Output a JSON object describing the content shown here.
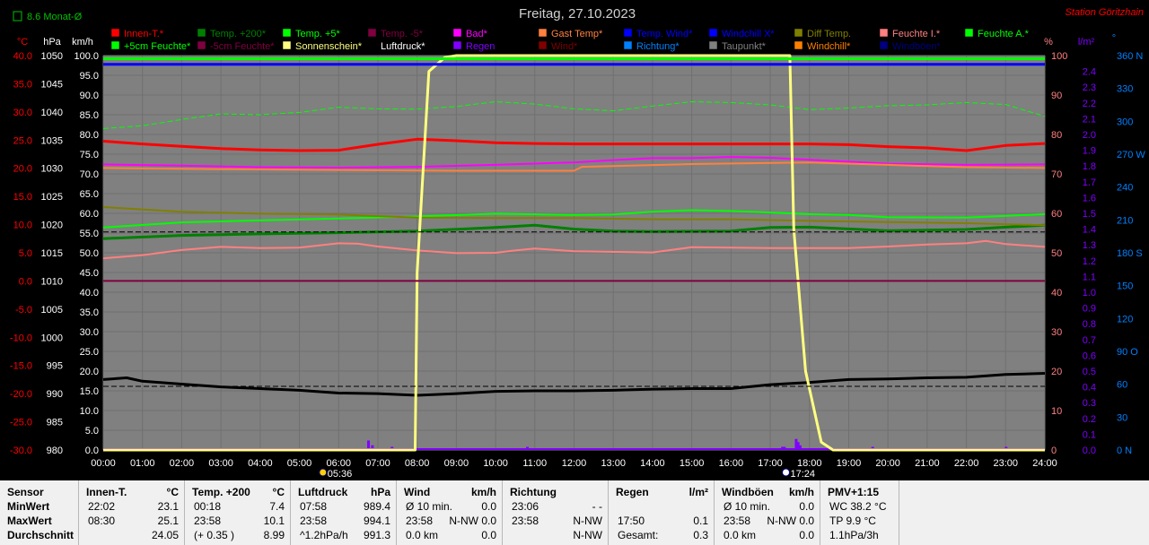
{
  "header": {
    "title": "Freitag, 27.10.2023",
    "station": "Station Göritzhain",
    "month_avg": "8.6 Monat-Ø"
  },
  "axis_units": {
    "celsius": "°C",
    "hpa": "hPa",
    "kmh": "km/h",
    "percent": "%",
    "rain": "l/m²",
    "dir": "°"
  },
  "legend": [
    {
      "label": "Innen-T.*",
      "color": "#ff0000"
    },
    {
      "label": "Temp. +200*",
      "color": "#008000"
    },
    {
      "label": "Temp. +5*",
      "color": "#00ff00"
    },
    {
      "label": "Temp. -5*",
      "color": "#800040"
    },
    {
      "label": "Bad*",
      "color": "#ff00ff"
    },
    {
      "label": "Gast Temp*",
      "color": "#ff8040"
    },
    {
      "label": "Temp. Wind*",
      "color": "#0000ff"
    },
    {
      "label": "Windchill X*",
      "color": "#0000ff"
    },
    {
      "label": "Diff Temp.",
      "color": "#808000"
    },
    {
      "label": "Feuchte I.*",
      "color": "#ff8080"
    },
    {
      "label": "Feuchte A.*",
      "color": "#00ff00"
    },
    {
      "label": "+5cm Feuchte*",
      "color": "#00ff00"
    },
    {
      "label": "-5cm Feuchte*",
      "color": "#800040"
    },
    {
      "label": "Sonnenschein*",
      "color": "#ffff80"
    },
    {
      "label": "Luftdruck*",
      "color": "#000000"
    },
    {
      "label": "Regen",
      "color": "#8000ff"
    },
    {
      "label": "Wind*",
      "color": "#800000"
    },
    {
      "label": "Richtung*",
      "color": "#0080ff"
    },
    {
      "label": "Taupunkt*",
      "color": "#808080"
    },
    {
      "label": "Windchill*",
      "color": "#ff8000"
    },
    {
      "label": "Windböen*",
      "color": "#000080"
    }
  ],
  "chart_data": {
    "type": "line",
    "title": "Freitag, 27.10.2023",
    "x_ticks": [
      "00:00",
      "01:00",
      "02:00",
      "03:00",
      "04:00",
      "05:00",
      "06:00",
      "07:00",
      "08:00",
      "09:00",
      "10:00",
      "11:00",
      "12:00",
      "13:00",
      "14:00",
      "15:00",
      "16:00",
      "17:00",
      "18:00",
      "19:00",
      "20:00",
      "21:00",
      "22:00",
      "23:00",
      "24:00"
    ],
    "xlim": [
      0,
      24
    ],
    "axes": {
      "celsius": {
        "ticks": [
          "40.0",
          "35.0",
          "30.0",
          "25.0",
          "20.0",
          "15.0",
          "10.0",
          "5.0",
          "0.0",
          "-5.0",
          "-10.0",
          "-15.0",
          "-20.0",
          "-25.0",
          "-30.0"
        ],
        "range": [
          -30,
          40
        ]
      },
      "hpa": {
        "ticks": [
          "1050",
          "1045",
          "1040",
          "1035",
          "1030",
          "1025",
          "1020",
          "1015",
          "1010",
          "1005",
          "1000",
          "995",
          "990",
          "985",
          "980"
        ],
        "range": [
          980,
          1050
        ]
      },
      "kmh": {
        "ticks": [
          "100.0",
          "95.0",
          "90.0",
          "85.0",
          "80.0",
          "75.0",
          "70.0",
          "65.0",
          "60.0",
          "55.0",
          "50.0",
          "45.0",
          "40.0",
          "35.0",
          "30.0",
          "25.0",
          "20.0",
          "15.0",
          "10.0",
          "5.0",
          "0.0"
        ],
        "range": [
          0,
          100
        ]
      },
      "percent": {
        "ticks": [
          "100",
          "90",
          "80",
          "70",
          "60",
          "50",
          "40",
          "30",
          "20",
          "10",
          "0"
        ],
        "range": [
          0,
          100
        ]
      },
      "rain": {
        "ticks": [
          "2.4",
          "2.3",
          "2.2",
          "2.1",
          "2.0",
          "1.9",
          "1.8",
          "1.7",
          "1.6",
          "1.5",
          "1.4",
          "1.3",
          "1.2",
          "1.1",
          "1.0",
          "0.9",
          "0.8",
          "0.7",
          "0.6",
          "0.5",
          "0.4",
          "0.3",
          "0.2",
          "0.1",
          "0.0"
        ],
        "range": [
          0,
          2.5
        ]
      },
      "dir": {
        "ticks": [
          "360 N",
          "330",
          "300",
          "270 W",
          "240",
          "210",
          "180 S",
          "150",
          "120",
          "90 O",
          "60",
          "30",
          "0 N"
        ],
        "range": [
          0,
          360
        ]
      }
    },
    "sun_events": {
      "sunrise": "05:36",
      "sunset": "17:24",
      "sunrise_hour": 5.6,
      "sunset_hour": 17.4
    },
    "series": [
      {
        "name": "Innen-T.*",
        "color": "#ff0000",
        "width": 3,
        "scale": "kmh",
        "x": [
          0,
          1,
          2,
          3,
          4,
          5,
          6,
          7,
          8,
          9,
          10,
          11,
          12,
          13,
          14,
          15,
          16,
          17,
          18,
          19,
          20,
          21,
          22,
          23,
          24
        ],
        "y": [
          78.3,
          77.6,
          77,
          76.4,
          76.1,
          75.9,
          76,
          77.5,
          78.8,
          78.4,
          77.9,
          77.7,
          77.6,
          77.6,
          77.6,
          77.6,
          77.6,
          77.6,
          77.6,
          77.4,
          76.9,
          76.6,
          75.9,
          77.2,
          77.7
        ]
      },
      {
        "name": "Bad*",
        "color": "#ff00ff",
        "width": 2,
        "scale": "kmh",
        "x": [
          0,
          2,
          4,
          6,
          8,
          10,
          12,
          13,
          14,
          15,
          16,
          17,
          18,
          19,
          20,
          22,
          24
        ],
        "y": [
          72.4,
          72.1,
          71.7,
          71.6,
          71.8,
          72.3,
          72.9,
          73.5,
          74,
          74,
          74.3,
          74.1,
          73.6,
          73.1,
          72.6,
          72.3,
          72.4
        ]
      },
      {
        "name": "Gast Temp*",
        "color": "#ff8040",
        "width": 2,
        "scale": "kmh",
        "x": [
          0,
          3,
          6,
          9,
          11,
          12,
          12.2,
          15,
          18,
          20,
          22,
          24
        ],
        "y": [
          71.5,
          71.2,
          71,
          70.8,
          70.8,
          70.8,
          71.8,
          72.5,
          72.9,
          72.3,
          71.7,
          71.5
        ]
      },
      {
        "name": "Temp. +5*",
        "color": "#00ff00",
        "width": 2,
        "scale": "kmh",
        "x": [
          0,
          2,
          4,
          6,
          8,
          10,
          12,
          13,
          14,
          15,
          16,
          17,
          18,
          19,
          20,
          22,
          24
        ],
        "y": [
          56.4,
          57.7,
          58.2,
          58.7,
          59.2,
          59.9,
          59.6,
          59.7,
          60.4,
          60.8,
          60.6,
          60.2,
          59.8,
          59.6,
          59,
          58.9,
          59.8
        ]
      },
      {
        "name": "Temp. +200*",
        "color": "#008000",
        "width": 3,
        "scale": "kmh",
        "x": [
          0,
          2,
          4,
          6,
          8,
          10,
          11,
          12,
          13,
          14,
          16,
          17,
          18,
          20,
          22,
          23,
          24
        ],
        "y": [
          53.6,
          54.4,
          54.8,
          55.1,
          55.5,
          56.4,
          57,
          56,
          55.5,
          55.4,
          55.5,
          56.4,
          56.5,
          55.6,
          55.9,
          56.5,
          57
        ]
      },
      {
        "name": "Feuchte A.*",
        "color": "#00ff00",
        "width": 1,
        "dashed": true,
        "scale": "percent",
        "x": [
          0,
          1,
          2,
          3,
          4,
          5,
          6,
          7,
          8,
          9,
          10,
          11,
          12,
          13,
          14,
          15,
          16,
          17,
          18,
          19,
          20,
          21,
          22,
          23,
          24
        ],
        "y": [
          81.5,
          82.2,
          83.8,
          85.2,
          85,
          85.6,
          86.9,
          86.5,
          86.4,
          87.1,
          88.3,
          87.7,
          86.5,
          86,
          87.2,
          88.3,
          88.1,
          87.5,
          86.3,
          86.7,
          87.3,
          87.5,
          88.1,
          87.6,
          84.6
        ]
      },
      {
        "name": "Feuchte I.*",
        "color": "#ff8080",
        "width": 2,
        "scale": "percent",
        "x": [
          0,
          1,
          2,
          3,
          4,
          5,
          6,
          6.5,
          7,
          8,
          9,
          10,
          10.5,
          11,
          12,
          14,
          15,
          17,
          19,
          20,
          21,
          22,
          22.5,
          23,
          24
        ],
        "y": [
          48.6,
          49.4,
          50.7,
          51.5,
          51.2,
          51.3,
          52.4,
          52.3,
          51.6,
          50.6,
          49.9,
          50,
          50.6,
          51.1,
          50.4,
          50.1,
          51.4,
          51.2,
          51.2,
          51.6,
          52.1,
          52.4,
          53,
          52.2,
          51.5
        ]
      },
      {
        "name": "Diff Temp.",
        "color": "#808000",
        "width": 2,
        "scale": "percent",
        "x": [
          0,
          2,
          4,
          6,
          8,
          10,
          12,
          14,
          16,
          18,
          20,
          22,
          24
        ],
        "y": [
          61.6,
          60.4,
          59.9,
          59.7,
          58.9,
          58.8,
          58.8,
          58.5,
          58.5,
          58.1,
          57.8,
          57.5,
          57
        ]
      },
      {
        "name": "Luftdruck*",
        "color": "#000000",
        "width": 3,
        "scale": "hpa",
        "x": [
          0,
          0.6,
          1,
          2,
          3,
          4,
          5,
          6,
          7,
          8,
          9,
          10,
          11,
          12,
          13,
          14,
          15,
          16,
          17,
          18,
          19,
          20,
          21,
          22,
          23,
          24
        ],
        "y": [
          992.5,
          992.8,
          992.2,
          991.7,
          991.2,
          990.9,
          990.6,
          990.1,
          990,
          989.7,
          990,
          990.4,
          990.5,
          990.5,
          990.6,
          990.8,
          990.9,
          990.9,
          991.6,
          992,
          992.5,
          992.6,
          992.8,
          992.9,
          993.4,
          993.6
        ]
      },
      {
        "name": "Sonnenschein*",
        "color": "#ffff80",
        "width": 3,
        "scale": "kmh",
        "x": [
          0,
          7.95,
          8.0,
          8.3,
          8.7,
          9.0,
          17.5,
          17.6,
          17.9,
          18.3,
          18.6,
          24
        ],
        "y": [
          0,
          0,
          45,
          96,
          99.5,
          100,
          100,
          56,
          20,
          2,
          0,
          0
        ]
      },
      {
        "name": "Windchill*",
        "color": "#00ff00",
        "width": 3,
        "scale": "kmh",
        "x": [
          0,
          24
        ],
        "y": [
          99.2,
          99.2
        ]
      },
      {
        "name": "Windböen*",
        "color": "#0000ff",
        "width": 3,
        "scale": "kmh",
        "x": [
          0,
          24
        ],
        "y": [
          97.8,
          97.8
        ]
      },
      {
        "name": "Temp. -5*",
        "color": "#800040",
        "width": 2,
        "scale": "celsius",
        "x": [
          0,
          24
        ],
        "y": [
          0,
          0
        ]
      },
      {
        "name": "Taupunkt*",
        "color": "#000000",
        "width": 1,
        "dashed": true,
        "scale": "hpa",
        "x": [
          0,
          24
        ],
        "y": [
          991.3,
          991.3
        ]
      },
      {
        "name": "Wind*",
        "color": "#000000",
        "width": 1,
        "dashed": true,
        "scale": "kmh",
        "x": [
          0,
          24
        ],
        "y": [
          55.3,
          55.3
        ]
      }
    ],
    "rain_bars": {
      "color": "#8000ff",
      "x": [
        6.75,
        6.85,
        7.35,
        10.8,
        17.3,
        17.35,
        17.65,
        17.7,
        17.75,
        19.6,
        21.4,
        23.0
      ],
      "y": [
        0.06,
        0.03,
        0.02,
        0.02,
        0.02,
        0.02,
        0.07,
        0.05,
        0.03,
        0.02,
        0.01,
        0.02
      ]
    }
  },
  "stats": {
    "row_labels": {
      "min": "MinWert",
      "max": "MaxWert",
      "avg": "Durchschnitt"
    },
    "panels": [
      {
        "title": "Sensor",
        "unit": "",
        "min": [
          "",
          ""
        ],
        "max": [
          "",
          ""
        ],
        "avg": [
          "",
          ""
        ]
      },
      {
        "title": "Innen-T.",
        "unit": "°C",
        "min": [
          "22:02",
          "23.1"
        ],
        "max": [
          "08:30",
          "25.1"
        ],
        "avg": [
          "",
          "24.05"
        ]
      },
      {
        "title": "Temp. +200",
        "unit": "°C",
        "min": [
          "00:18",
          "7.4"
        ],
        "max": [
          "23:58",
          "10.1"
        ],
        "avg": [
          "(+ 0.35 )",
          "8.99"
        ]
      },
      {
        "title": "Luftdruck",
        "unit": "hPa",
        "min": [
          "07:58",
          "989.4"
        ],
        "max": [
          "23:58",
          "994.1"
        ],
        "avg": [
          "^1.2hPa/h",
          "991.3"
        ]
      },
      {
        "title": "Wind",
        "unit": "km/h",
        "min": [
          "Ø 10 min.",
          "0.0"
        ],
        "max": [
          "23:58",
          "N-NW  0.0"
        ],
        "avg": [
          "0.0 km",
          "0.0"
        ]
      },
      {
        "title": "Richtung",
        "unit": "",
        "min": [
          "23:06",
          "- -"
        ],
        "max": [
          "23:58",
          "N-NW"
        ],
        "avg": [
          "",
          "N-NW"
        ]
      },
      {
        "title": "Regen",
        "unit": "l/m²",
        "min": [
          "",
          ""
        ],
        "max": [
          "17:50",
          "0.1"
        ],
        "avg": [
          "Gesamt:",
          "0.3"
        ]
      },
      {
        "title": "Windböen",
        "unit": "km/h",
        "min": [
          "Ø 10 min.",
          "0.0"
        ],
        "max": [
          "23:58",
          "N-NW  0.0"
        ],
        "avg": [
          "0.0 km",
          "0.0"
        ]
      },
      {
        "title": "PMV+1:15",
        "unit": "",
        "min": [
          "WC 38.2 °C",
          ""
        ],
        "max": [
          "TP 9.9 °C",
          ""
        ],
        "avg": [
          "1.1hPa/3h",
          ""
        ]
      }
    ]
  }
}
